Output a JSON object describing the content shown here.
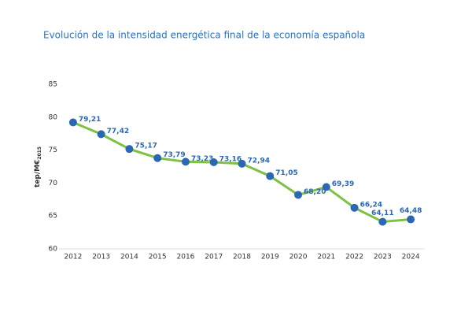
{
  "chart_data": {
    "type": "line",
    "title": "Evolución de la intensidad energética final de la economía española",
    "y_label": "tep/M€",
    "y_label_subscript": "2015",
    "categories": [
      "2012",
      "2013",
      "2014",
      "2015",
      "2016",
      "2017",
      "2018",
      "2019",
      "2020",
      "2021",
      "2022",
      "2023",
      "2024"
    ],
    "series": [
      {
        "color": "#7dc242",
        "marker_color": "#2b67b5",
        "values": [
          79.21,
          77.42,
          75.17,
          73.79,
          73.23,
          73.16,
          72.94,
          71.05,
          68.2,
          69.39,
          66.24,
          64.11,
          64.48
        ],
        "value_labels": [
          "79,21",
          "77,42",
          "75,17",
          "73,79",
          "73,23",
          "73,16",
          "72,94",
          "71,05",
          "68,20",
          "69,39",
          "66,24",
          "64,11",
          "64,48"
        ]
      }
    ],
    "ylim": [
      60,
      85
    ],
    "yticks": [
      60,
      65,
      70,
      75,
      80,
      85
    ],
    "grid": false
  }
}
